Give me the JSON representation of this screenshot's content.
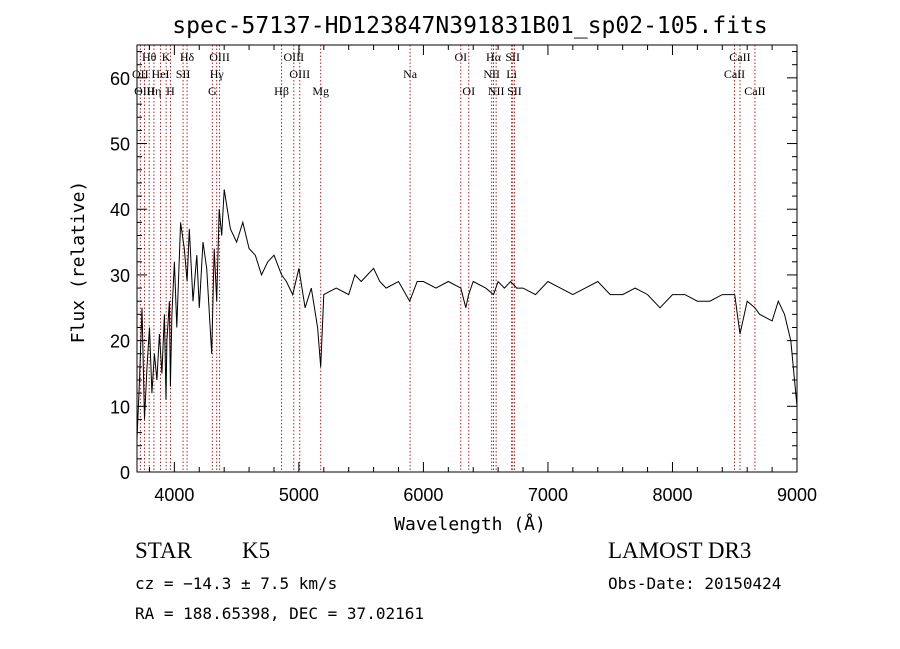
{
  "chart_data": {
    "type": "line",
    "title": "spec-57137-HD123847N391831B01_sp02-105.fits",
    "xlabel": "Wavelength (Å)",
    "ylabel": "Flux (relative)",
    "xlim": [
      3700,
      9000
    ],
    "ylim": [
      0,
      65
    ],
    "xticks": [
      4000,
      5000,
      6000,
      7000,
      8000,
      9000
    ],
    "yticks": [
      0,
      10,
      20,
      30,
      40,
      50,
      60
    ],
    "grid": false,
    "line_color": "#000000",
    "marker_color": "#b22222",
    "series": [
      {
        "x": [
          3700,
          3720,
          3740,
          3760,
          3780,
          3800,
          3820,
          3840,
          3860,
          3880,
          3900,
          3920,
          3933,
          3940,
          3960,
          3968,
          3980,
          4000,
          4020,
          4050,
          4080,
          4102,
          4120,
          4150,
          4180,
          4200,
          4230,
          4260,
          4300,
          4320,
          4340,
          4360,
          4380,
          4400,
          4450,
          4500,
          4550,
          4600,
          4650,
          4700,
          4750,
          4800,
          4861,
          4900,
          4950,
          5000,
          5050,
          5100,
          5150,
          5175,
          5200,
          5300,
          5400,
          5450,
          5500,
          5550,
          5600,
          5650,
          5700,
          5800,
          5890,
          5950,
          6000,
          6100,
          6200,
          6300,
          6340,
          6363,
          6400,
          6500,
          6563,
          6600,
          6650,
          6700,
          6750,
          6800,
          6900,
          7000,
          7100,
          7200,
          7300,
          7400,
          7500,
          7600,
          7700,
          7800,
          7900,
          8000,
          8100,
          8200,
          8300,
          8400,
          8500,
          8542,
          8600,
          8662,
          8700,
          8800,
          8850,
          8900,
          8950,
          9000
        ],
        "y": [
          5,
          14,
          25,
          8,
          16,
          22,
          12,
          18,
          14,
          21,
          15,
          24,
          11,
          20,
          26,
          13,
          24,
          32,
          22,
          38,
          34,
          29,
          37,
          26,
          33,
          25,
          35,
          31,
          18,
          34,
          26,
          40,
          36,
          43,
          37,
          35,
          38,
          34,
          33,
          30,
          32,
          33,
          30,
          29,
          27,
          31,
          25,
          28,
          22,
          16,
          27,
          28,
          27,
          30,
          29,
          30,
          31,
          29,
          28,
          29,
          26,
          29,
          29,
          28,
          29,
          28,
          25,
          27,
          29,
          28,
          27,
          29,
          28,
          29,
          28,
          28,
          27,
          29,
          28,
          27,
          28,
          29,
          27,
          27,
          28,
          27,
          25,
          27,
          27,
          26,
          26,
          27,
          27,
          21,
          26,
          25,
          24,
          23,
          26,
          24,
          20,
          10
        ]
      }
    ],
    "lines": [
      {
        "label": "Hθ",
        "x": 3798,
        "row": 1
      },
      {
        "label": "OII",
        "x": 3727,
        "row": 2
      },
      {
        "label": "OIII",
        "x": 3760,
        "row": 3
      },
      {
        "label": "Hη",
        "x": 3836,
        "row": 3
      },
      {
        "label": "K",
        "x": 3934,
        "row": 1
      },
      {
        "label": "HeI",
        "x": 3889,
        "row": 2
      },
      {
        "label": "H",
        "x": 3969,
        "row": 3
      },
      {
        "label": "SII",
        "x": 4070,
        "row": 2
      },
      {
        "label": "Hδ",
        "x": 4102,
        "row": 1
      },
      {
        "label": "OIII",
        "x": 4363,
        "row": 1
      },
      {
        "label": "Hγ",
        "x": 4340,
        "row": 2
      },
      {
        "label": "G",
        "x": 4305,
        "row": 3
      },
      {
        "label": "OIII",
        "x": 4959,
        "row": 1
      },
      {
        "label": "OIII",
        "x": 5007,
        "row": 2
      },
      {
        "label": "Hβ",
        "x": 4861,
        "row": 3
      },
      {
        "label": "Mg",
        "x": 5175,
        "row": 3
      },
      {
        "label": "Na",
        "x": 5893,
        "row": 2
      },
      {
        "label": "OI",
        "x": 6300,
        "row": 1
      },
      {
        "label": "OI",
        "x": 6364,
        "row": 3
      },
      {
        "label": "Hα",
        "x": 6563,
        "row": 1
      },
      {
        "label": "NII",
        "x": 6548,
        "row": 2
      },
      {
        "label": "NII",
        "x": 6584,
        "row": 3
      },
      {
        "label": "SII",
        "x": 6717,
        "row": 1
      },
      {
        "label": "Li",
        "x": 6708,
        "row": 2
      },
      {
        "label": "SII",
        "x": 6731,
        "row": 3
      },
      {
        "label": "CaII",
        "x": 8542,
        "row": 1
      },
      {
        "label": "CaII",
        "x": 8498,
        "row": 2
      },
      {
        "label": "CaII",
        "x": 8662,
        "row": 3
      }
    ]
  },
  "info": {
    "class": "STAR",
    "subclass": "K5",
    "survey": "LAMOST DR3",
    "cz": "cz = −14.3 ± 7.5 km/s",
    "obs_date": "Obs-Date: 20150424",
    "coords": "RA = 188.65398, DEC =  37.02161"
  }
}
